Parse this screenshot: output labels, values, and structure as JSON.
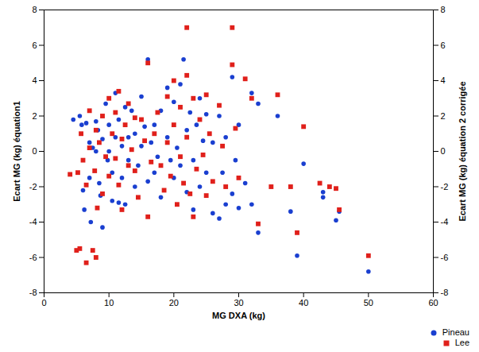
{
  "chart_data": {
    "type": "scatter",
    "x_label": "MG DXA (kg)",
    "y_label": "Ecart MG (kg) équation1",
    "y2_label": "Ecart MG (kg) équation 2 corrigée",
    "xlim": [
      0,
      60
    ],
    "xticks": [
      0,
      10,
      20,
      30,
      40,
      50,
      60
    ],
    "ylim": [
      -8,
      8
    ],
    "yticks": [
      -8,
      -6,
      -4,
      -2,
      0,
      2,
      4,
      6,
      8
    ],
    "y2lim": [
      -8,
      8
    ],
    "y2ticks": [
      -8,
      -6,
      -4,
      -2,
      0,
      2,
      4,
      6,
      8
    ],
    "grid": false,
    "legend": "bottom-right",
    "series": [
      {
        "name": "Pineau",
        "color": "#1a3fd0",
        "marker": "circle",
        "x": [
          4.5,
          5.5,
          5.8,
          6,
          6.2,
          6.5,
          7,
          7,
          7.2,
          7.5,
          8,
          8,
          8.3,
          8.5,
          8.7,
          9,
          9,
          9.5,
          9.8,
          10,
          10,
          10.5,
          10.5,
          11,
          11,
          11.5,
          11.5,
          12,
          12,
          12.5,
          12.5,
          13,
          13,
          13.5,
          14,
          14,
          14.5,
          15,
          15,
          15.5,
          16,
          16,
          16.5,
          17,
          17,
          17.5,
          18,
          18,
          19,
          19,
          19.5,
          20,
          20,
          20.5,
          21,
          21,
          21.5,
          22,
          22,
          22.5,
          23,
          23,
          23.5,
          24,
          24,
          24.5,
          25,
          25,
          26,
          26,
          27,
          27,
          27.5,
          28,
          28,
          29,
          29,
          29.5,
          30,
          30,
          31,
          32,
          32,
          33,
          33,
          36,
          38,
          39,
          40,
          43,
          43,
          45,
          45.5,
          50
        ],
        "values": [
          1.8,
          2.0,
          1.5,
          -2.2,
          -3.3,
          1.6,
          0.5,
          -1.5,
          -4.0,
          0.2,
          1.7,
          0,
          1.2,
          -1.8,
          -2.5,
          -4.3,
          0.7,
          2.7,
          -0.5,
          1.5,
          0,
          -2.8,
          -1.2,
          3.3,
          0.8,
          -2.9,
          1.8,
          0.3,
          -1.5,
          -3.0,
          2.5,
          0.8,
          -0.5,
          2.3,
          -2.0,
          1.0,
          -0.8,
          3.1,
          0.3,
          1.4,
          5.2,
          -1.7,
          0.5,
          -1.2,
          1.5,
          -0.3,
          2.3,
          -2.6,
          3.6,
          0.8,
          -0.5,
          2.8,
          -1.5,
          0.2,
          3.8,
          -0.8,
          5.2,
          1.2,
          -2.3,
          2.2,
          -0.5,
          -3.3,
          1.5,
          3.0,
          -2.0,
          0.6,
          -1.2,
          2.1,
          -3.5,
          0.5,
          2.0,
          -3.8,
          -1.2,
          0.8,
          -3.0,
          4.2,
          -2.4,
          -0.5,
          1.5,
          -3.2,
          -1.8,
          3.3,
          -3.0,
          -4.6,
          2.7,
          2.0,
          -3.4,
          -5.9,
          -0.7,
          -2.3,
          -2.6,
          -3.9,
          -3.4,
          -6.8
        ]
      },
      {
        "name": "Lee",
        "color": "#e0201b",
        "marker": "square",
        "axis": "y2",
        "x": [
          4,
          5,
          5.2,
          5.5,
          5.7,
          6,
          6.5,
          6.5,
          7,
          7,
          7.5,
          7.8,
          8,
          8,
          8.2,
          8.5,
          9,
          9,
          9.5,
          10,
          10,
          10.5,
          11,
          11,
          11.5,
          11.5,
          12,
          12,
          12.5,
          13,
          13,
          13.5,
          14,
          14,
          14.5,
          15,
          15.5,
          16,
          16,
          16.5,
          17,
          17.5,
          18,
          18.5,
          19,
          19,
          19.5,
          20,
          20,
          20.5,
          21,
          21,
          21.5,
          22,
          22,
          22,
          22.5,
          23,
          23,
          23.5,
          24,
          24.5,
          25,
          25,
          25.5,
          26,
          27,
          27.5,
          28,
          29,
          29,
          29.5,
          30,
          31,
          32,
          33,
          35,
          36,
          38,
          39,
          40,
          42.5,
          44,
          45,
          45.5,
          50
        ],
        "values": [
          -1.3,
          -5.6,
          -1.2,
          -5.5,
          1.0,
          -0.5,
          -6.3,
          -1.9,
          2.3,
          0.2,
          -5.6,
          -1.1,
          -6.0,
          1.2,
          -3.2,
          0.5,
          2.0,
          -2.4,
          -0.3,
          3.0,
          -1.4,
          1.0,
          2.2,
          -0.4,
          3.4,
          -1.9,
          0.7,
          -3.3,
          1.5,
          -0.8,
          2.7,
          0.1,
          1.9,
          -1.1,
          -2.6,
          1.8,
          0.6,
          5.0,
          -3.7,
          -0.6,
          1.0,
          2.2,
          -0.8,
          -2.2,
          3.1,
          0.5,
          -1.4,
          4.0,
          1.5,
          -3.0,
          2.5,
          -0.3,
          -1.8,
          7.0,
          4.3,
          0.8,
          -2.4,
          3.0,
          -3.7,
          -1.0,
          1.8,
          -0.2,
          3.2,
          -2.5,
          1.0,
          -1.7,
          2.6,
          0.3,
          -2.0,
          7.0,
          4.9,
          1.3,
          -1.5,
          4.1,
          3.0,
          -4.1,
          -2.0,
          3.2,
          -2.0,
          -4.6,
          1.4,
          -1.8,
          -2.0,
          -2.1,
          -3.3,
          -5.9
        ]
      }
    ]
  }
}
